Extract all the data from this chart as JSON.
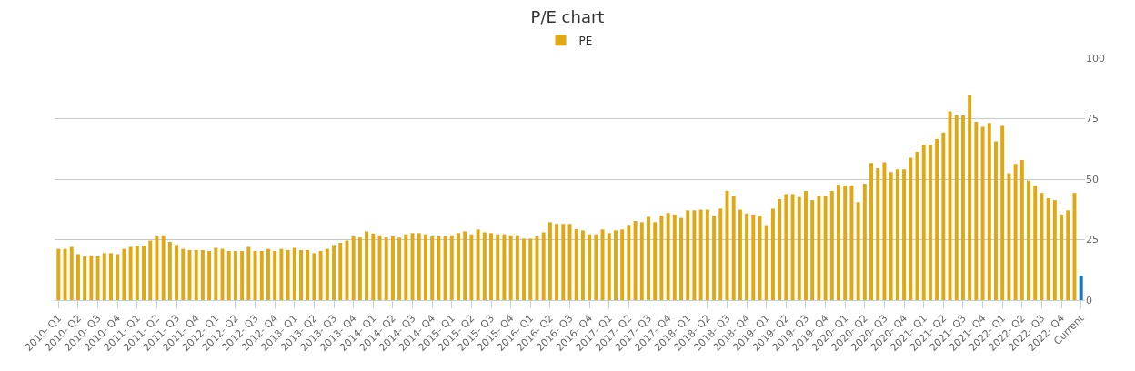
{
  "chart_data": {
    "type": "bar",
    "title": "P/E chart",
    "categories": [
      "2010- Q1",
      null,
      null,
      "2010- Q2",
      null,
      null,
      "2010- Q3",
      null,
      null,
      "2010- Q4",
      null,
      null,
      "2011- Q1",
      null,
      null,
      "2011- Q2",
      null,
      null,
      "2011- Q3",
      null,
      null,
      "2011- Q4",
      null,
      null,
      "2012- Q1",
      null,
      null,
      "2012- Q2",
      null,
      null,
      "2012- Q3",
      null,
      null,
      "2012- Q4",
      null,
      null,
      "2013- Q1",
      null,
      null,
      "2013- Q2",
      null,
      null,
      "2013- Q3",
      null,
      null,
      "2013- Q4",
      null,
      null,
      "2014- Q1",
      null,
      null,
      "2014- Q2",
      null,
      null,
      "2014- Q3",
      null,
      null,
      "2014- Q4",
      null,
      null,
      "2015- Q1",
      null,
      null,
      "2015- Q2",
      null,
      null,
      "2015- Q3",
      null,
      null,
      "2015- Q4",
      null,
      null,
      "2016- Q1",
      null,
      null,
      "2016- Q2",
      null,
      null,
      "2016- Q3",
      null,
      null,
      "2016- Q4",
      null,
      null,
      "2017- Q1",
      null,
      null,
      "2017- Q2",
      null,
      null,
      "2017- Q3",
      null,
      null,
      "2017- Q4",
      null,
      null,
      "2018- Q1",
      null,
      null,
      "2018- Q2",
      null,
      null,
      "2018- Q3",
      null,
      null,
      "2018- Q4",
      null,
      null,
      "2019- Q1",
      null,
      null,
      "2019- Q2",
      null,
      null,
      "2019- Q3",
      null,
      null,
      "2019- Q4",
      null,
      null,
      "2020- Q1",
      null,
      null,
      "2020- Q2",
      null,
      null,
      "2020- Q3",
      null,
      null,
      "2020- Q4",
      null,
      null,
      "2021- Q1",
      null,
      null,
      "2021- Q2",
      null,
      null,
      "2021- Q3",
      null,
      null,
      "2021- Q4",
      null,
      null,
      "2022- Q1",
      null,
      null,
      "2022- Q2",
      null,
      null,
      "2022- Q3",
      null,
      null,
      "2022- Q4",
      null,
      null,
      "Current"
    ],
    "series": [
      {
        "name": "PE",
        "values": [
          21.2,
          21.2,
          22.0,
          19.0,
          18.1,
          18.5,
          18.1,
          19.4,
          19.4,
          19.0,
          21.2,
          22.0,
          22.5,
          22.5,
          24.6,
          26.3,
          26.8,
          24.1,
          22.8,
          21.2,
          20.7,
          20.7,
          20.7,
          20.3,
          21.6,
          21.2,
          20.3,
          20.3,
          20.3,
          22.0,
          20.3,
          20.3,
          21.2,
          20.3,
          21.2,
          20.7,
          21.6,
          20.7,
          20.7,
          19.4,
          20.3,
          21.2,
          22.8,
          23.7,
          24.6,
          26.3,
          25.9,
          28.4,
          27.5,
          26.8,
          25.9,
          26.3,
          25.8,
          27.2,
          27.7,
          27.7,
          27.2,
          26.3,
          26.3,
          26.3,
          26.8,
          27.7,
          28.4,
          27.2,
          29.2,
          28.0,
          27.7,
          27.2,
          27.2,
          26.8,
          26.8,
          25.4,
          25.4,
          26.3,
          28.0,
          32.2,
          31.5,
          31.5,
          31.5,
          29.3,
          28.8,
          27.2,
          27.2,
          29.2,
          27.7,
          28.8,
          29.2,
          31.1,
          32.7,
          32.2,
          34.4,
          32.2,
          34.9,
          36.0,
          35.4,
          34.0,
          37.1,
          37.1,
          37.4,
          37.4,
          34.9,
          37.8,
          45.2,
          43.0,
          37.4,
          35.8,
          35.4,
          34.9,
          31.0,
          37.8,
          41.7,
          43.8,
          43.8,
          42.6,
          45.1,
          41.3,
          43.1,
          43.1,
          45.1,
          47.7,
          47.4,
          47.4,
          40.5,
          48.1,
          56.7,
          54.5,
          57.0,
          52.9,
          54.0,
          54.0,
          58.8,
          61.3,
          64.3,
          64.3,
          66.5,
          69.3,
          78.0,
          76.3,
          76.3,
          84.8,
          73.7,
          71.6,
          73.2,
          65.6,
          72.0,
          52.4,
          56.3,
          57.9,
          49.4,
          47.4,
          44.3,
          42.1,
          41.3,
          35.4,
          37.1,
          44.3,
          10.0
        ],
        "colors": [
          "#e0a814",
          "#e0a814",
          "#e0a814",
          "#e0a814",
          "#e0a814",
          "#e0a814",
          "#e0a814",
          "#e0a814",
          "#e0a814",
          "#e0a814",
          "#e0a814",
          "#e0a814",
          "#e0a814",
          "#e0a814",
          "#e0a814",
          "#e0a814",
          "#e0a814",
          "#e0a814",
          "#e0a814",
          "#e0a814",
          "#e0a814",
          "#e0a814",
          "#e0a814",
          "#e0a814",
          "#e0a814",
          "#e0a814",
          "#e0a814",
          "#e0a814",
          "#e0a814",
          "#e0a814",
          "#e0a814",
          "#e0a814",
          "#e0a814",
          "#e0a814",
          "#e0a814",
          "#e0a814",
          "#e0a814",
          "#e0a814",
          "#e0a814",
          "#e0a814",
          "#e0a814",
          "#e0a814",
          "#e0a814",
          "#e0a814",
          "#e0a814",
          "#e0a814",
          "#e0a814",
          "#e0a814",
          "#e0a814",
          "#e0a814",
          "#e0a814",
          "#e0a814",
          "#e0a814",
          "#e0a814",
          "#e0a814",
          "#e0a814",
          "#e0a814",
          "#e0a814",
          "#e0a814",
          "#e0a814",
          "#e0a814",
          "#e0a814",
          "#e0a814",
          "#e0a814",
          "#e0a814",
          "#e0a814",
          "#e0a814",
          "#e0a814",
          "#e0a814",
          "#e0a814",
          "#e0a814",
          "#e0a814",
          "#e0a814",
          "#e0a814",
          "#e0a814",
          "#e0a814",
          "#e0a814",
          "#e0a814",
          "#e0a814",
          "#e0a814",
          "#e0a814",
          "#e0a814",
          "#e0a814",
          "#e0a814",
          "#e0a814",
          "#e0a814",
          "#e0a814",
          "#e0a814",
          "#e0a814",
          "#e0a814",
          "#e0a814",
          "#e0a814",
          "#e0a814",
          "#e0a814",
          "#e0a814",
          "#e0a814",
          "#e0a814",
          "#e0a814",
          "#e0a814",
          "#e0a814",
          "#e0a814",
          "#e0a814",
          "#e0a814",
          "#e0a814",
          "#e0a814",
          "#e0a814",
          "#e0a814",
          "#e0a814",
          "#e0a814",
          "#e0a814",
          "#e0a814",
          "#e0a814",
          "#e0a814",
          "#e0a814",
          "#e0a814",
          "#e0a814",
          "#e0a814",
          "#e0a814",
          "#e0a814",
          "#e0a814",
          "#e0a814",
          "#e0a814",
          "#e0a814",
          "#e0a814",
          "#e0a814",
          "#e0a814",
          "#e0a814",
          "#e0a814",
          "#e0a814",
          "#e0a814",
          "#e0a814",
          "#e0a814",
          "#e0a814",
          "#e0a814",
          "#e0a814",
          "#e0a814",
          "#e0a814",
          "#e0a814",
          "#e0a814",
          "#e0a814",
          "#e0a814",
          "#e0a814",
          "#e0a814",
          "#e0a814",
          "#e0a814",
          "#e0a814",
          "#e0a814",
          "#e0a814",
          "#e0a814",
          "#e0a814",
          "#e0a814",
          "#e0a814",
          "#e0a814",
          "#e0a814",
          "#e0a814",
          "#e0a814",
          "#1a75bc"
        ]
      }
    ],
    "ylim": [
      0,
      100
    ],
    "yticks": [
      0,
      25,
      50,
      75,
      100
    ],
    "grid": "y",
    "legend": "top"
  }
}
